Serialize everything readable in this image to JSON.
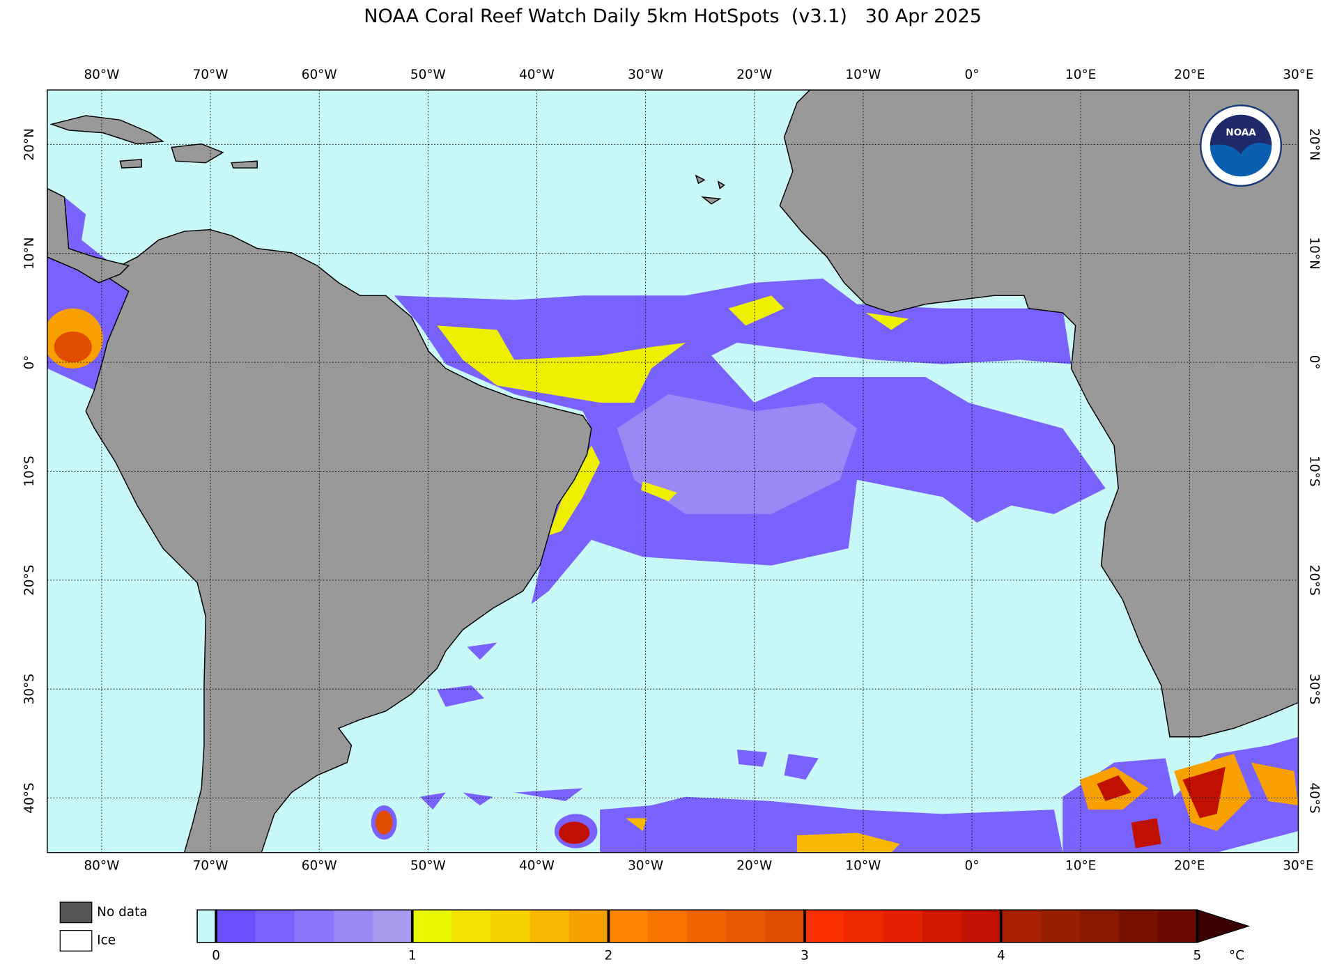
{
  "title": "NOAA Coral Reef Watch Daily 5km HotSpots  (v3.1)   30 Apr 2025",
  "map": {
    "xlim": [
      -85,
      30
    ],
    "ylim": [
      -45,
      25
    ],
    "xticks": [
      {
        "value": -80,
        "label": "80°W"
      },
      {
        "value": -70,
        "label": "70°W"
      },
      {
        "value": -60,
        "label": "60°W"
      },
      {
        "value": -50,
        "label": "50°W"
      },
      {
        "value": -40,
        "label": "40°W"
      },
      {
        "value": -30,
        "label": "30°W"
      },
      {
        "value": -20,
        "label": "20°W"
      },
      {
        "value": -10,
        "label": "10°W"
      },
      {
        "value": 0,
        "label": "0°"
      },
      {
        "value": 10,
        "label": "10°E"
      },
      {
        "value": 20,
        "label": "20°E"
      },
      {
        "value": 30,
        "label": "30°E"
      }
    ],
    "yticks": [
      {
        "value": 20,
        "label": "20°N"
      },
      {
        "value": 10,
        "label": "10°N"
      },
      {
        "value": 0,
        "label": "0°"
      },
      {
        "value": -10,
        "label": "10°S"
      },
      {
        "value": -20,
        "label": "20°S"
      },
      {
        "value": -30,
        "label": "30°S"
      },
      {
        "value": -40,
        "label": "40°S"
      }
    ],
    "grid": true
  },
  "colorbar": {
    "lim": [
      0,
      5
    ],
    "ticks": [
      0,
      1,
      2,
      3,
      4,
      5
    ],
    "unit": "°C",
    "under_color": "#c8f8f8",
    "over_color": "#3a0000",
    "colors": [
      "#6a50ff",
      "#7a62ff",
      "#8a76fa",
      "#9a88f4",
      "#a99cf0",
      "#e8f800",
      "#f0e400",
      "#f5d000",
      "#f8b800",
      "#f8a000",
      "#fb8400",
      "#f87400",
      "#f06400",
      "#e85800",
      "#e04c00",
      "#f83000",
      "#f02800",
      "#e02000",
      "#d01800",
      "#c01000",
      "#a82000",
      "#982000",
      "#881800",
      "#781000",
      "#680800"
    ]
  },
  "legend": [
    "No data",
    "Ice"
  ],
  "logo": "NOAA"
}
